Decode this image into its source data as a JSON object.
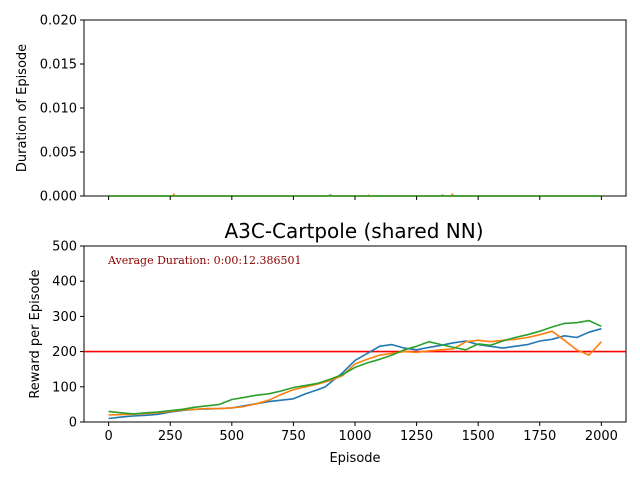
{
  "chart_data": [
    {
      "type": "line",
      "title": "",
      "xlabel": "",
      "ylabel": "Duration of Episode",
      "xlim": [
        -100,
        2100
      ],
      "ylim": [
        0,
        0.02
      ],
      "x_ticks": [
        0,
        250,
        500,
        750,
        1000,
        1250,
        1500,
        1750,
        2000
      ],
      "y_ticks": [
        0.0,
        0.005,
        0.01,
        0.015,
        0.02
      ],
      "y_tick_labels": [
        "0.000",
        "0.005",
        "0.010",
        "0.015",
        "0.020"
      ],
      "show_x_tick_labels": false,
      "grid": false,
      "series": [
        {
          "color": "#1f77b4",
          "x": [
            0,
            500,
            890,
            900,
            910,
            1500,
            2000
          ],
          "y": [
            0,
            0,
            0,
            0.0001,
            0,
            0,
            0
          ]
        },
        {
          "color": "#ff7f0e",
          "x": [
            0,
            260,
            265,
            270,
            1050,
            1055,
            1060,
            1390,
            1395,
            1400,
            2000
          ],
          "y": [
            0,
            0,
            0.0002,
            0,
            0,
            0.0001,
            0,
            0,
            0.0002,
            0,
            0
          ]
        },
        {
          "color": "#2ca02c",
          "x": [
            0,
            700,
            1350,
            1355,
            1360,
            1800,
            2000
          ],
          "y": [
            0,
            0,
            0,
            0.0001,
            0,
            0,
            0
          ]
        }
      ]
    },
    {
      "type": "line",
      "title": "A3C-Cartpole (shared NN)",
      "xlabel": "Episode",
      "ylabel": "Reward per Episode",
      "xlim": [
        -100,
        2100
      ],
      "ylim": [
        0,
        500
      ],
      "x_ticks": [
        0,
        250,
        500,
        750,
        1000,
        1250,
        1500,
        1750,
        2000
      ],
      "x_tick_labels": [
        "0",
        "250",
        "500",
        "750",
        "1000",
        "1250",
        "1500",
        "1750",
        "2000"
      ],
      "y_ticks": [
        0,
        100,
        200,
        300,
        400,
        500
      ],
      "y_tick_labels": [
        "0",
        "100",
        "200",
        "300",
        "400",
        "500"
      ],
      "grid": false,
      "annotation": "Average Duration: 0:00:12.386501",
      "threshold": {
        "y": 200,
        "color": "#ff0000"
      },
      "series": [
        {
          "color": "#1f77b4",
          "x": [
            0,
            50,
            100,
            150,
            200,
            250,
            300,
            350,
            400,
            450,
            500,
            550,
            600,
            650,
            700,
            750,
            800,
            850,
            880,
            900,
            950,
            1000,
            1050,
            1100,
            1150,
            1200,
            1250,
            1300,
            1350,
            1400,
            1450,
            1500,
            1550,
            1600,
            1650,
            1700,
            1750,
            1800,
            1850,
            1900,
            1950,
            2000
          ],
          "y": [
            10,
            14,
            17,
            19,
            22,
            28,
            33,
            36,
            37,
            38,
            40,
            46,
            52,
            58,
            62,
            66,
            80,
            92,
            100,
            112,
            140,
            175,
            195,
            215,
            220,
            210,
            205,
            212,
            218,
            225,
            230,
            220,
            215,
            210,
            215,
            220,
            230,
            235,
            245,
            240,
            255,
            265
          ]
        },
        {
          "color": "#ff7f0e",
          "x": [
            0,
            50,
            100,
            150,
            200,
            250,
            300,
            350,
            400,
            450,
            500,
            550,
            600,
            650,
            700,
            750,
            800,
            850,
            900,
            950,
            1000,
            1050,
            1100,
            1150,
            1200,
            1250,
            1300,
            1350,
            1400,
            1450,
            1500,
            1550,
            1600,
            1650,
            1700,
            1750,
            1800,
            1850,
            1900,
            1950,
            2000
          ],
          "y": [
            20,
            21,
            22,
            24,
            26,
            30,
            34,
            36,
            38,
            38,
            40,
            44,
            52,
            62,
            78,
            92,
            100,
            108,
            118,
            132,
            165,
            178,
            190,
            195,
            200,
            198,
            202,
            205,
            208,
            228,
            232,
            228,
            232,
            235,
            240,
            248,
            258,
            232,
            205,
            190,
            228
          ]
        },
        {
          "color": "#2ca02c",
          "x": [
            0,
            50,
            100,
            150,
            200,
            250,
            300,
            350,
            400,
            450,
            500,
            550,
            600,
            650,
            700,
            750,
            800,
            850,
            900,
            950,
            1000,
            1050,
            1100,
            1150,
            1200,
            1250,
            1300,
            1350,
            1400,
            1450,
            1500,
            1550,
            1600,
            1650,
            1700,
            1750,
            1800,
            1850,
            1900,
            1950,
            2000
          ],
          "y": [
            30,
            26,
            23,
            26,
            28,
            32,
            36,
            42,
            46,
            50,
            64,
            70,
            76,
            80,
            88,
            98,
            104,
            110,
            122,
            135,
            155,
            168,
            178,
            190,
            205,
            215,
            228,
            220,
            212,
            205,
            222,
            218,
            230,
            240,
            248,
            258,
            270,
            280,
            282,
            288,
            272
          ]
        }
      ]
    }
  ]
}
